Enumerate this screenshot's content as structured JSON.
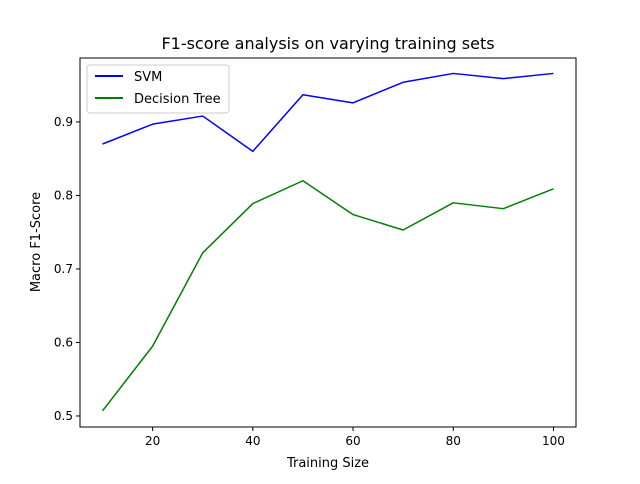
{
  "chart_data": {
    "type": "line",
    "title": "F1-score analysis on varying training sets",
    "xlabel": "Training Size",
    "ylabel": "Macro F1-Score",
    "x": [
      10,
      20,
      30,
      40,
      50,
      60,
      70,
      80,
      90,
      100
    ],
    "xlim": [
      5.5,
      104.5
    ],
    "ylim": [
      0.485,
      0.987
    ],
    "x_ticks": [
      20,
      40,
      60,
      80,
      100
    ],
    "y_ticks": [
      0.5,
      0.6,
      0.7,
      0.8,
      0.9
    ],
    "x_tick_labels": [
      "20",
      "40",
      "60",
      "80",
      "100"
    ],
    "y_tick_labels": [
      "0.5",
      "0.6",
      "0.7",
      "0.8",
      "0.9"
    ],
    "grid": false,
    "legend_position": "top-left",
    "series": [
      {
        "name": "SVM",
        "color": "#0000ff",
        "values": [
          0.87,
          0.897,
          0.908,
          0.86,
          0.937,
          0.926,
          0.954,
          0.966,
          0.959,
          0.966
        ]
      },
      {
        "name": "Decision Tree",
        "color": "#008000",
        "values": [
          0.507,
          0.595,
          0.722,
          0.789,
          0.82,
          0.774,
          0.753,
          0.79,
          0.782,
          0.809
        ]
      }
    ]
  }
}
